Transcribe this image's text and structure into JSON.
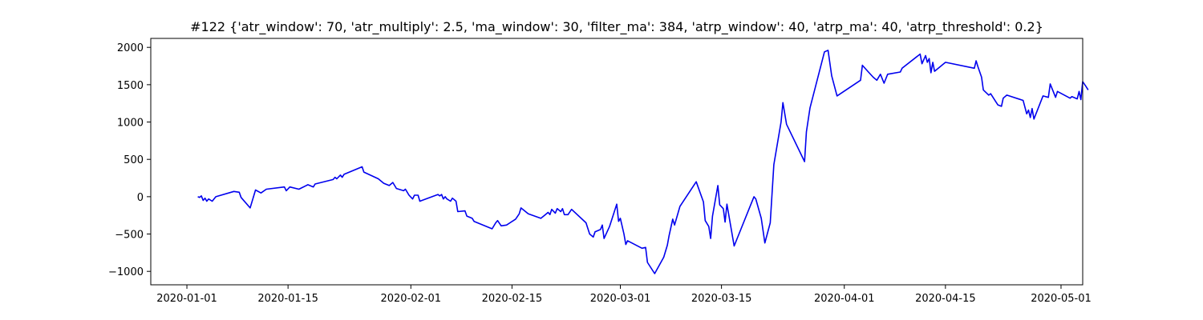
{
  "chart_data": {
    "type": "line",
    "title": "#122 {'atr_window': 70, 'atr_multiply': 2.5, 'ma_window': 30, 'filter_ma': 384, 'atrp_window': 40, 'atrp_ma': 40, 'atrp_threshold': 0.2}",
    "xlabel": "",
    "ylabel": "",
    "xlim": [
      "2019-12-27",
      "2020-05-04"
    ],
    "ylim": [
      -1180,
      2120
    ],
    "grid": false,
    "legend": "none",
    "x_ticks": [
      "2020-01-01",
      "2020-01-15",
      "2020-02-01",
      "2020-02-15",
      "2020-03-01",
      "2020-03-15",
      "2020-04-01",
      "2020-04-15",
      "2020-05-01"
    ],
    "y_ticks": [
      -1000,
      -500,
      0,
      500,
      1000,
      1500,
      2000
    ],
    "y_tick_labels": [
      "−1000",
      "−500",
      "0",
      "500",
      "1000",
      "1500",
      "2000"
    ],
    "series": [
      {
        "color": "#0000ee",
        "points": [
          [
            "2020-01-02T12:00",
            0
          ],
          [
            "2020-01-02T18:00",
            -10
          ],
          [
            "2020-01-03T00:00",
            10
          ],
          [
            "2020-01-03T06:00",
            -50
          ],
          [
            "2020-01-03T12:00",
            -20
          ],
          [
            "2020-01-03T18:00",
            -60
          ],
          [
            "2020-01-04T00:00",
            -30
          ],
          [
            "2020-01-04T12:00",
            -60
          ],
          [
            "2020-01-05T00:00",
            0
          ],
          [
            "2020-01-07T12:00",
            70
          ],
          [
            "2020-01-08T06:00",
            60
          ],
          [
            "2020-01-08T12:00",
            -10
          ],
          [
            "2020-01-09T18:00",
            -150
          ],
          [
            "2020-01-10T12:00",
            90
          ],
          [
            "2020-01-11T06:00",
            50
          ],
          [
            "2020-01-12T00:00",
            100
          ],
          [
            "2020-01-14T12:00",
            130
          ],
          [
            "2020-01-14T18:00",
            80
          ],
          [
            "2020-01-15T06:00",
            130
          ],
          [
            "2020-01-16T12:00",
            100
          ],
          [
            "2020-01-17T18:00",
            160
          ],
          [
            "2020-01-18T12:00",
            130
          ],
          [
            "2020-01-18T18:00",
            170
          ],
          [
            "2020-01-21T06:00",
            230
          ],
          [
            "2020-01-21T12:00",
            260
          ],
          [
            "2020-01-21T18:00",
            240
          ],
          [
            "2020-01-22T06:00",
            290
          ],
          [
            "2020-01-22T12:00",
            260
          ],
          [
            "2020-01-22T18:00",
            300
          ],
          [
            "2020-01-25T06:00",
            400
          ],
          [
            "2020-01-25T12:00",
            330
          ],
          [
            "2020-01-27T12:00",
            240
          ],
          [
            "2020-01-28T06:00",
            180
          ],
          [
            "2020-01-29T00:00",
            150
          ],
          [
            "2020-01-29T12:00",
            190
          ],
          [
            "2020-01-30T00:00",
            110
          ],
          [
            "2020-01-31T00:00",
            80
          ],
          [
            "2020-01-31T06:00",
            100
          ],
          [
            "2020-01-31T18:00",
            20
          ],
          [
            "2020-02-01T06:00",
            -30
          ],
          [
            "2020-02-01T12:00",
            20
          ],
          [
            "2020-02-02T00:00",
            20
          ],
          [
            "2020-02-02T06:00",
            -60
          ],
          [
            "2020-02-04T18:00",
            30
          ],
          [
            "2020-02-05T00:00",
            10
          ],
          [
            "2020-02-05T06:00",
            30
          ],
          [
            "2020-02-05T12:00",
            -30
          ],
          [
            "2020-02-05T18:00",
            0
          ],
          [
            "2020-02-06T00:00",
            -30
          ],
          [
            "2020-02-06T12:00",
            -60
          ],
          [
            "2020-02-06T18:00",
            -20
          ],
          [
            "2020-02-07T06:00",
            -60
          ],
          [
            "2020-02-07T12:00",
            -200
          ],
          [
            "2020-02-08T12:00",
            -190
          ],
          [
            "2020-02-08T18:00",
            -260
          ],
          [
            "2020-02-09T12:00",
            -290
          ],
          [
            "2020-02-09T18:00",
            -330
          ],
          [
            "2020-02-12T06:00",
            -430
          ],
          [
            "2020-02-12T18:00",
            -350
          ],
          [
            "2020-02-13T00:00",
            -320
          ],
          [
            "2020-02-13T12:00",
            -390
          ],
          [
            "2020-02-14T06:00",
            -380
          ],
          [
            "2020-02-15T12:00",
            -300
          ],
          [
            "2020-02-16T00:00",
            -230
          ],
          [
            "2020-02-16T06:00",
            -150
          ],
          [
            "2020-02-17T06:00",
            -230
          ],
          [
            "2020-02-19T00:00",
            -290
          ],
          [
            "2020-02-19T12:00",
            -250
          ],
          [
            "2020-02-20T00:00",
            -210
          ],
          [
            "2020-02-20T06:00",
            -240
          ],
          [
            "2020-02-20T12:00",
            -170
          ],
          [
            "2020-02-21T00:00",
            -220
          ],
          [
            "2020-02-21T06:00",
            -160
          ],
          [
            "2020-02-21T18:00",
            -200
          ],
          [
            "2020-02-22T00:00",
            -160
          ],
          [
            "2020-02-22T06:00",
            -240
          ],
          [
            "2020-02-22T18:00",
            -240
          ],
          [
            "2020-02-23T06:00",
            -170
          ],
          [
            "2020-02-25T06:00",
            -350
          ],
          [
            "2020-02-25T18:00",
            -500
          ],
          [
            "2020-02-26T06:00",
            -540
          ],
          [
            "2020-02-26T12:00",
            -470
          ],
          [
            "2020-02-27T06:00",
            -440
          ],
          [
            "2020-02-27T12:00",
            -380
          ],
          [
            "2020-02-27T18:00",
            -560
          ],
          [
            "2020-02-28T12:00",
            -400
          ],
          [
            "2020-02-29T12:00",
            -100
          ],
          [
            "2020-02-29T18:00",
            -330
          ],
          [
            "2020-03-01T00:00",
            -290
          ],
          [
            "2020-03-01T12:00",
            -500
          ],
          [
            "2020-03-01T18:00",
            -640
          ],
          [
            "2020-03-02T00:00",
            -590
          ],
          [
            "2020-03-04T00:00",
            -690
          ],
          [
            "2020-03-04T12:00",
            -680
          ],
          [
            "2020-03-04T18:00",
            -880
          ],
          [
            "2020-03-05T18:00",
            -1030
          ],
          [
            "2020-03-07T00:00",
            -810
          ],
          [
            "2020-03-07T12:00",
            -650
          ],
          [
            "2020-03-07T18:00",
            -520
          ],
          [
            "2020-03-08T06:00",
            -300
          ],
          [
            "2020-03-08T12:00",
            -380
          ],
          [
            "2020-03-09T06:00",
            -130
          ],
          [
            "2020-03-11T12:00",
            200
          ],
          [
            "2020-03-12T12:00",
            -70
          ],
          [
            "2020-03-12T18:00",
            -320
          ],
          [
            "2020-03-13T06:00",
            -400
          ],
          [
            "2020-03-13T12:00",
            -560
          ],
          [
            "2020-03-13T18:00",
            -260
          ],
          [
            "2020-03-14T12:00",
            150
          ],
          [
            "2020-03-14T18:00",
            -110
          ],
          [
            "2020-03-15T06:00",
            -160
          ],
          [
            "2020-03-15T12:00",
            -340
          ],
          [
            "2020-03-15T18:00",
            -100
          ],
          [
            "2020-03-16T18:00",
            -660
          ],
          [
            "2020-03-19T12:00",
            0
          ],
          [
            "2020-03-19T18:00",
            -30
          ],
          [
            "2020-03-20T12:00",
            -290
          ],
          [
            "2020-03-21T00:00",
            -620
          ],
          [
            "2020-03-21T18:00",
            -350
          ],
          [
            "2020-03-22T06:00",
            430
          ],
          [
            "2020-03-23T06:00",
            1000
          ],
          [
            "2020-03-23T12:00",
            1260
          ],
          [
            "2020-03-24T00:00",
            970
          ],
          [
            "2020-03-26T12:00",
            470
          ],
          [
            "2020-03-26T18:00",
            870
          ],
          [
            "2020-03-27T06:00",
            1190
          ],
          [
            "2020-03-29T06:00",
            1940
          ],
          [
            "2020-03-29T18:00",
            1960
          ],
          [
            "2020-03-30T06:00",
            1620
          ],
          [
            "2020-03-31T00:00",
            1350
          ],
          [
            "2020-04-03T06:00",
            1560
          ],
          [
            "2020-04-03T12:00",
            1760
          ],
          [
            "2020-04-04T06:00",
            1680
          ],
          [
            "2020-04-05T00:00",
            1600
          ],
          [
            "2020-04-05T12:00",
            1560
          ],
          [
            "2020-04-06T00:00",
            1640
          ],
          [
            "2020-04-06T12:00",
            1520
          ],
          [
            "2020-04-07T00:00",
            1640
          ],
          [
            "2020-04-08T18:00",
            1670
          ],
          [
            "2020-04-09T00:00",
            1720
          ],
          [
            "2020-04-11T12:00",
            1910
          ],
          [
            "2020-04-11T18:00",
            1780
          ],
          [
            "2020-04-12T06:00",
            1890
          ],
          [
            "2020-04-12T12:00",
            1800
          ],
          [
            "2020-04-12T18:00",
            1850
          ],
          [
            "2020-04-13T00:00",
            1660
          ],
          [
            "2020-04-13T06:00",
            1800
          ],
          [
            "2020-04-13T12:00",
            1680
          ],
          [
            "2020-04-15T00:00",
            1800
          ],
          [
            "2020-04-19T00:00",
            1720
          ],
          [
            "2020-04-19T06:00",
            1820
          ],
          [
            "2020-04-19T12:00",
            1740
          ],
          [
            "2020-04-20T00:00",
            1600
          ],
          [
            "2020-04-20T06:00",
            1430
          ],
          [
            "2020-04-21T00:00",
            1360
          ],
          [
            "2020-04-21T06:00",
            1380
          ],
          [
            "2020-04-22T06:00",
            1230
          ],
          [
            "2020-04-22T18:00",
            1210
          ],
          [
            "2020-04-23T00:00",
            1320
          ],
          [
            "2020-04-23T12:00",
            1360
          ],
          [
            "2020-04-25T18:00",
            1290
          ],
          [
            "2020-04-26T06:00",
            1110
          ],
          [
            "2020-04-26T12:00",
            1160
          ],
          [
            "2020-04-26T18:00",
            1060
          ],
          [
            "2020-04-27T00:00",
            1180
          ],
          [
            "2020-04-27T06:00",
            1040
          ],
          [
            "2020-04-28T12:00",
            1350
          ],
          [
            "2020-04-29T06:00",
            1330
          ],
          [
            "2020-04-29T12:00",
            1510
          ],
          [
            "2020-04-30T06:00",
            1330
          ],
          [
            "2020-04-30T12:00",
            1410
          ],
          [
            "2020-05-02T06:00",
            1320
          ],
          [
            "2020-05-02T12:00",
            1340
          ],
          [
            "2020-05-03T06:00",
            1310
          ],
          [
            "2020-05-03T12:00",
            1410
          ],
          [
            "2020-05-03T18:00",
            1300
          ],
          [
            "2020-05-04T00:00",
            1540
          ],
          [
            "2020-05-04T12:00",
            1470
          ],
          [
            "2020-05-04T18:00",
            1430
          ]
        ]
      }
    ]
  }
}
